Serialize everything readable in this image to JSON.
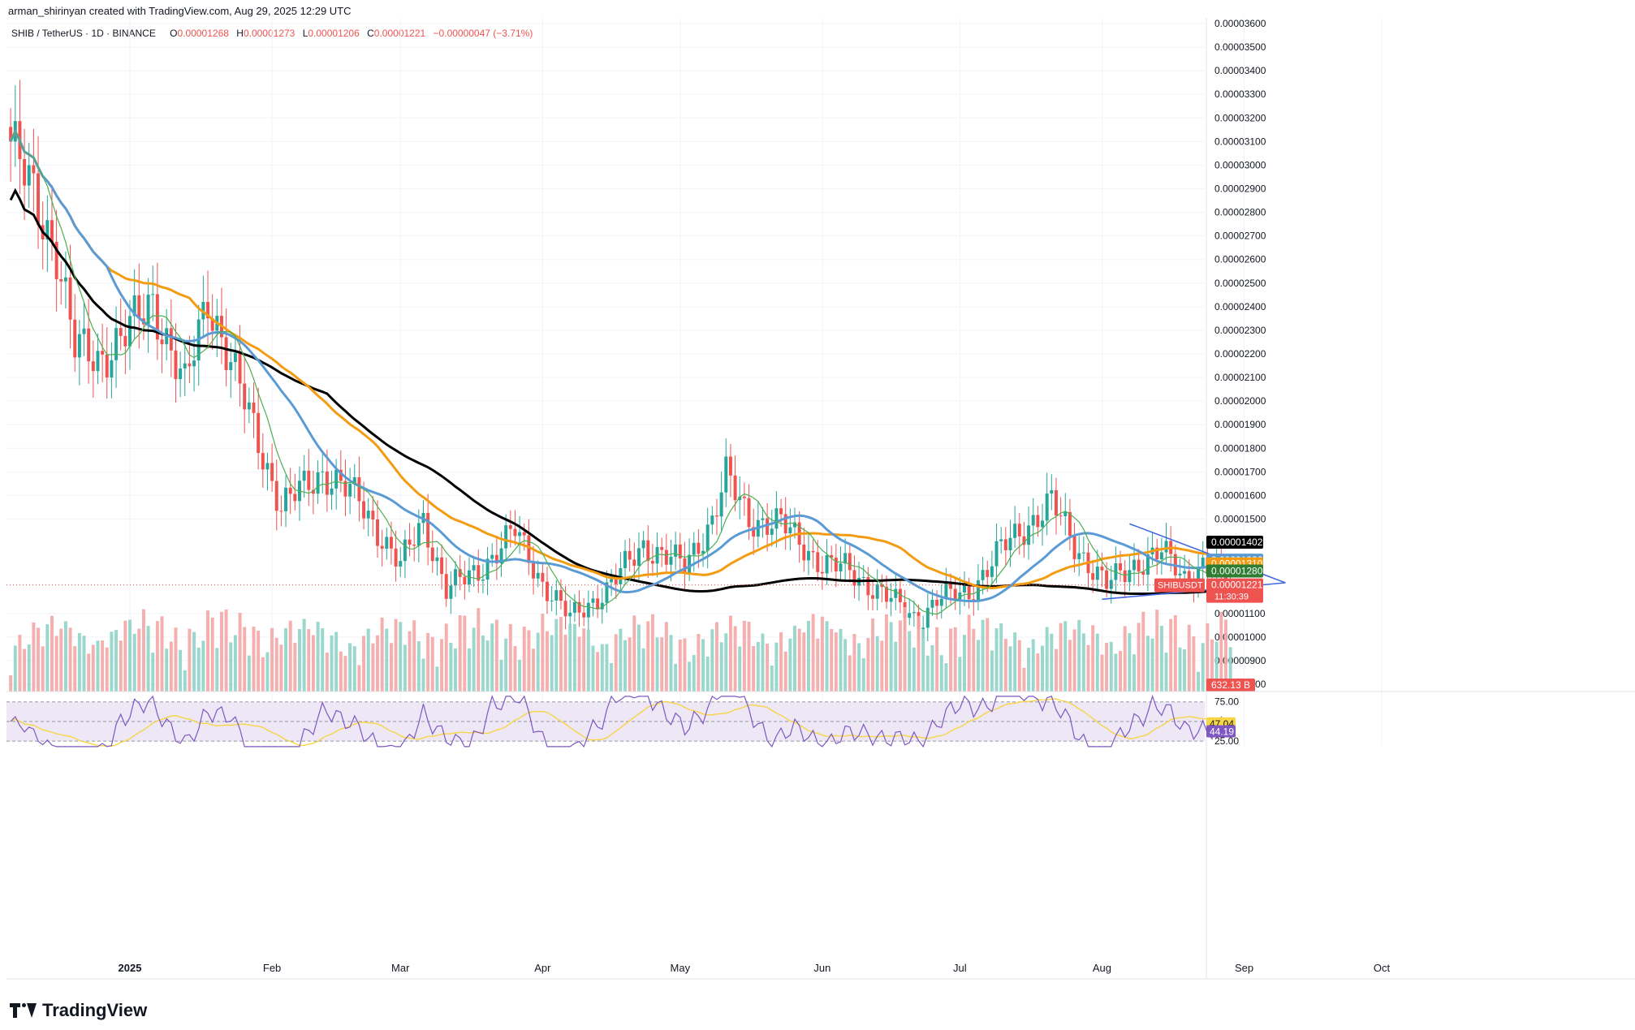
{
  "header": {
    "created_by": "arman_shirinyan created with TradingView.com, Aug 29, 2025 12:29 UTC"
  },
  "legend": {
    "symbol": "SHIB / TetherUS · 1D · BINANCE",
    "open_label": "O",
    "open": "0.00001268",
    "high_label": "H",
    "high": "0.00001273",
    "low_label": "L",
    "low": "0.00001206",
    "close_label": "C",
    "close": "0.00001221",
    "change": "−0.00000047 (−3.71%)"
  },
  "brand": {
    "name": "TradingView"
  },
  "colors": {
    "up": "#26a69a",
    "down": "#ef5350",
    "up_volume": "#8fd3c7",
    "down_volume": "#f5a6a6",
    "ma_fast": "#4caf50",
    "ma_blue": "#5b9bd5",
    "ma_orange": "#f39c12",
    "ma_black": "#000000",
    "rsi_line": "#7e57c2",
    "rsi_ma": "#f7d547",
    "rsi_band": "#ede7f6",
    "wedge": "#4169e1"
  },
  "chart_data": {
    "type": "candlestick",
    "title": "",
    "price_axis": {
      "min": 8e-06,
      "max": 3.6e-05,
      "ticks": [
        "0.00003600",
        "0.00003500",
        "0.00003400",
        "0.00003300",
        "0.00003200",
        "0.00003100",
        "0.00003000",
        "0.00002900",
        "0.00002800",
        "0.00002700",
        "0.00002600",
        "0.00002500",
        "0.00002400",
        "0.00002300",
        "0.00002200",
        "0.00002100",
        "0.00002000",
        "0.00001900",
        "0.00001800",
        "0.00001700",
        "0.00001600",
        "0.00001500",
        "0.00001100",
        "0.00001000",
        "0.00000900",
        "0.00000800"
      ]
    },
    "time_axis": {
      "labels": [
        "2025",
        "Feb",
        "Mar",
        "Apr",
        "May",
        "Jun",
        "Jul",
        "Aug",
        "Sep",
        "Oct"
      ]
    },
    "price_labels": [
      {
        "name": "ma_200",
        "value": "0.00001402",
        "color": "#000000"
      },
      {
        "name": "ma_50",
        "value": "0.00001326",
        "color": "#5b9bd5"
      },
      {
        "name": "ma_100",
        "value": "0.00001310",
        "color": "#f39c12"
      },
      {
        "name": "ma_20",
        "value": "0.00001280",
        "color": "#2e7d32"
      }
    ],
    "last_price": {
      "symbol": "SHIBUSDT",
      "value": "0.00001221",
      "countdown": "11:30:39"
    },
    "volume_label": "632.13 B",
    "rsi": {
      "levels": [
        "75.00",
        "25.00"
      ],
      "value": "44.19",
      "ma_value": "47.04",
      "upper": 75,
      "lower": 25
    },
    "anchors": [
      {
        "date": "2024-12-06",
        "price": 3.1e-05
      },
      {
        "date": "2024-12-10",
        "price": 2.9e-05
      },
      {
        "date": "2024-12-16",
        "price": 2.65e-05
      },
      {
        "date": "2024-12-20",
        "price": 2.22e-05
      },
      {
        "date": "2024-12-25",
        "price": 2.18e-05
      },
      {
        "date": "2025-01-01",
        "price": 2.3e-05
      },
      {
        "date": "2025-01-06",
        "price": 2.43e-05
      },
      {
        "date": "2025-01-13",
        "price": 2.05e-05
      },
      {
        "date": "2025-01-18",
        "price": 2.45e-05
      },
      {
        "date": "2025-01-24",
        "price": 2.1e-05
      },
      {
        "date": "2025-01-30",
        "price": 1.78e-05
      },
      {
        "date": "2025-02-03",
        "price": 1.55e-05
      },
      {
        "date": "2025-02-12",
        "price": 1.7e-05
      },
      {
        "date": "2025-02-20",
        "price": 1.58e-05
      },
      {
        "date": "2025-03-01",
        "price": 1.3e-05
      },
      {
        "date": "2025-03-06",
        "price": 1.5e-05
      },
      {
        "date": "2025-03-11",
        "price": 1.2e-05
      },
      {
        "date": "2025-03-18",
        "price": 1.28e-05
      },
      {
        "date": "2025-03-26",
        "price": 1.45e-05
      },
      {
        "date": "2025-04-01",
        "price": 1.23e-05
      },
      {
        "date": "2025-04-07",
        "price": 1.08e-05
      },
      {
        "date": "2025-04-15",
        "price": 1.2e-05
      },
      {
        "date": "2025-04-23",
        "price": 1.39e-05
      },
      {
        "date": "2025-05-02",
        "price": 1.3e-05
      },
      {
        "date": "2025-05-08",
        "price": 1.5e-05
      },
      {
        "date": "2025-05-11",
        "price": 1.68e-05
      },
      {
        "date": "2025-05-16",
        "price": 1.5e-05
      },
      {
        "date": "2025-05-23",
        "price": 1.48e-05
      },
      {
        "date": "2025-06-01",
        "price": 1.31e-05
      },
      {
        "date": "2025-06-06",
        "price": 1.29e-05
      },
      {
        "date": "2025-06-13",
        "price": 1.2e-05
      },
      {
        "date": "2025-06-22",
        "price": 1.07e-05
      },
      {
        "date": "2025-06-26",
        "price": 1.16e-05
      },
      {
        "date": "2025-07-03",
        "price": 1.19e-05
      },
      {
        "date": "2025-07-10",
        "price": 1.37e-05
      },
      {
        "date": "2025-07-17",
        "price": 1.5e-05
      },
      {
        "date": "2025-07-21",
        "price": 1.57e-05
      },
      {
        "date": "2025-07-26",
        "price": 1.39e-05
      },
      {
        "date": "2025-08-02",
        "price": 1.22e-05
      },
      {
        "date": "2025-08-09",
        "price": 1.32e-05
      },
      {
        "date": "2025-08-14",
        "price": 1.36e-05
      },
      {
        "date": "2025-08-19",
        "price": 1.25e-05
      },
      {
        "date": "2025-08-23",
        "price": 1.31e-05
      },
      {
        "date": "2025-08-29",
        "price": 1.22e-05
      }
    ],
    "wedge": {
      "upper": [
        {
          "date": "2025-08-07",
          "price": 1.48e-05
        },
        {
          "date": "2025-09-10",
          "price": 1.23e-05
        }
      ],
      "lower": [
        {
          "date": "2025-08-01",
          "price": 1.16e-05
        },
        {
          "date": "2025-09-10",
          "price": 1.23e-05
        }
      ]
    }
  }
}
